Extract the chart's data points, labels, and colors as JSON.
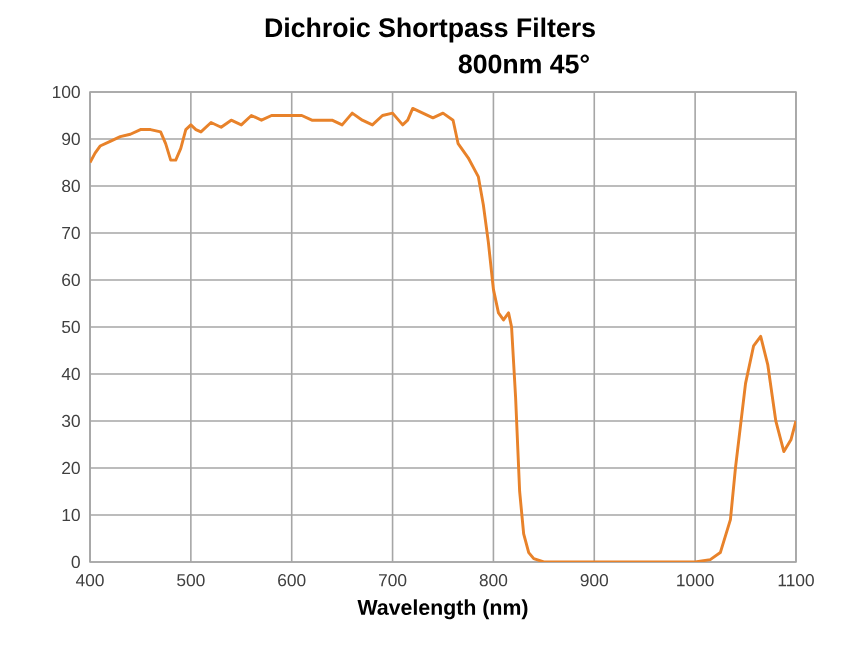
{
  "chart_data": {
    "type": "line",
    "title": "Dichroic Shortpass Filters",
    "subtitle": "800nm 45°",
    "xlabel": "Wavelength (nm)",
    "xlim": [
      400,
      1100
    ],
    "xticks": [
      400,
      500,
      600,
      700,
      800,
      900,
      1000,
      1100
    ],
    "ylim": [
      0,
      100
    ],
    "yticks": [
      0,
      10,
      20,
      30,
      40,
      50,
      60,
      70,
      80,
      90,
      100
    ],
    "grid": true,
    "marker": "none",
    "line_style": "solid",
    "series": [
      {
        "color": "#e8822a",
        "x": [
          400,
          405,
          410,
          420,
          430,
          440,
          450,
          460,
          470,
          475,
          480,
          485,
          490,
          495,
          500,
          505,
          510,
          520,
          530,
          540,
          550,
          560,
          570,
          580,
          590,
          600,
          610,
          620,
          640,
          650,
          660,
          670,
          680,
          690,
          700,
          710,
          715,
          720,
          730,
          740,
          750,
          760,
          765,
          775,
          785,
          790,
          795,
          800,
          805,
          810,
          815,
          818,
          822,
          826,
          830,
          835,
          840,
          850,
          1000,
          1015,
          1025,
          1035,
          1040,
          1050,
          1058,
          1065,
          1072,
          1080,
          1088,
          1095,
          1100
        ],
        "values": [
          85,
          87,
          88.5,
          89.5,
          90.5,
          91,
          92,
          92,
          91.5,
          89,
          85.5,
          85.5,
          88,
          92,
          93,
          92,
          91.5,
          93.5,
          92.5,
          94,
          93,
          95,
          94,
          95,
          95,
          95,
          95,
          94,
          94,
          93,
          95.5,
          94,
          93,
          95,
          95.5,
          93,
          94,
          96.5,
          95.5,
          94.5,
          95.5,
          94,
          89,
          86,
          82,
          76,
          68,
          58,
          53,
          51.5,
          53,
          50,
          35,
          15,
          6,
          2,
          0.7,
          0,
          0,
          0.5,
          2,
          9,
          20,
          38,
          46,
          48,
          42,
          30,
          23.5,
          26,
          30
        ]
      }
    ]
  }
}
